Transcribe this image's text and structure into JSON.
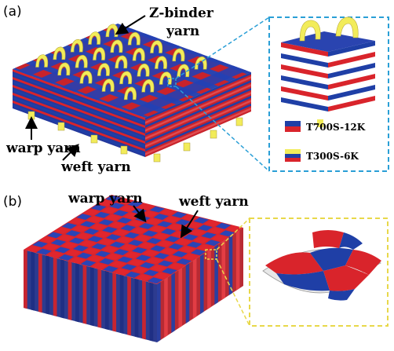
{
  "panel_a": {
    "letter": "(a)",
    "labels": {
      "z_binder_line1": "Z-binder",
      "z_binder_line2": "yarn",
      "warp": "warp yarn",
      "weft": "weft yarn"
    },
    "legend": [
      {
        "text": "T700S-12K"
      },
      {
        "text": "T300S-6K"
      }
    ]
  },
  "panel_b": {
    "letter": "(b)",
    "labels": {
      "warp": "warp yarn",
      "weft": "weft yarn"
    }
  },
  "colors": {
    "warp_blue": "#1f3fa6",
    "weft_red": "#d9242b",
    "binder_yellow": "#f2ec5a",
    "dash_blue": "#2a9fd6",
    "dash_yellow": "#e8d84a"
  }
}
